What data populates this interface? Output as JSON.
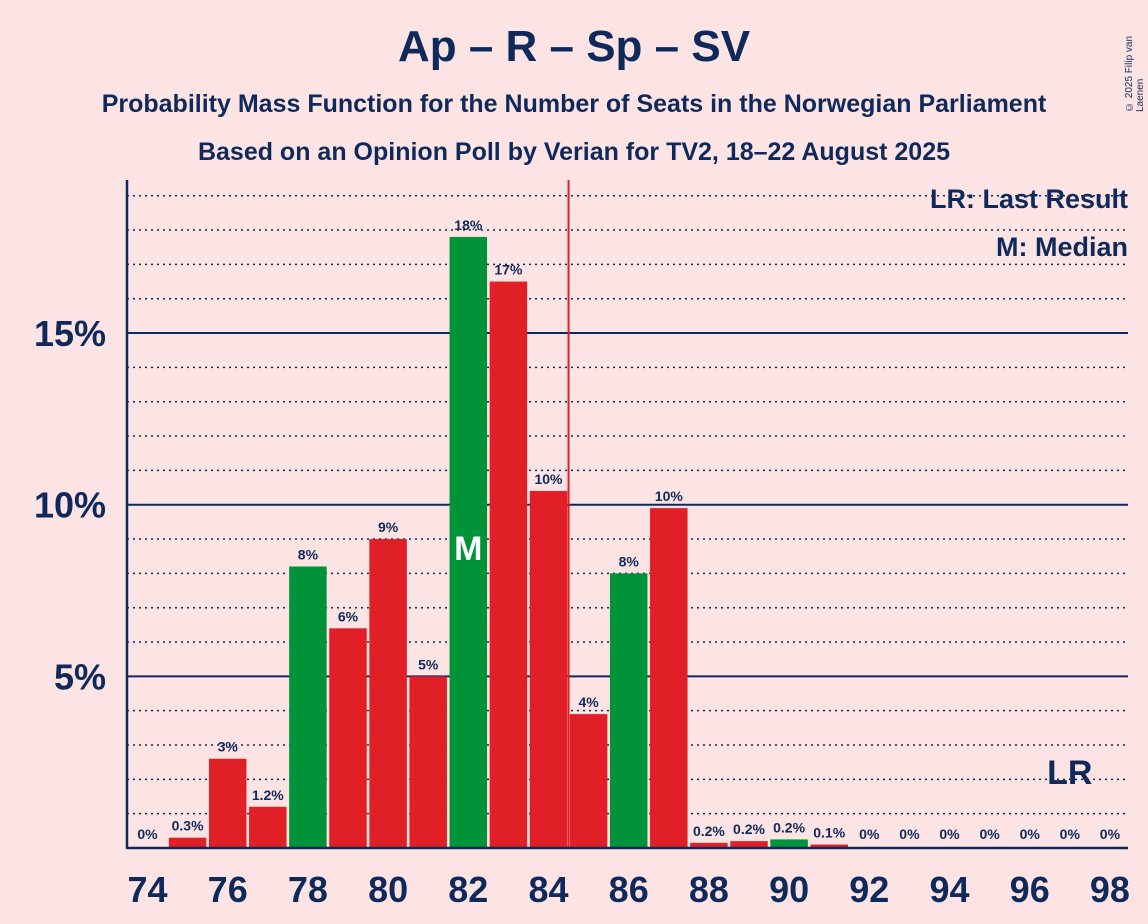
{
  "header": {
    "title": "Ap – R – Sp – SV",
    "subtitle": "Probability Mass Function for the Number of Seats in the Norwegian Parliament",
    "subtitle2": "Based on an Opinion Poll by Verian for TV2, 18–22 August 2025",
    "copyright": "© 2025 Filip van Laenen"
  },
  "legend": {
    "last_result": "LR: Last Result",
    "median": "M: Median"
  },
  "chart_data": {
    "type": "bar",
    "x": [
      74,
      75,
      76,
      77,
      78,
      79,
      80,
      81,
      82,
      83,
      84,
      85,
      86,
      87,
      88,
      89,
      90,
      91,
      92,
      93,
      94,
      95,
      96,
      97,
      98
    ],
    "values": [
      0,
      0.3,
      2.6,
      1.2,
      8.2,
      6.4,
      9.0,
      5.0,
      17.8,
      16.5,
      10.4,
      3.9,
      8.0,
      9.9,
      0.15,
      0.2,
      0.25,
      0.1,
      0,
      0,
      0,
      0,
      0,
      0,
      0
    ],
    "labels": [
      "0%",
      "0.3%",
      "3%",
      "1.2%",
      "8%",
      "6%",
      "9%",
      "5%",
      "18%",
      "17%",
      "10%",
      "4%",
      "8%",
      "10%",
      "0.2%",
      "0.2%",
      "0.2%",
      "0.1%",
      "0%",
      "0%",
      "0%",
      "0%",
      "0%",
      "0%",
      "0%"
    ],
    "bar_colors": [
      "#E01F26",
      "#E01F26",
      "#E01F26",
      "#E01F26",
      "#009339",
      "#E01F26",
      "#E01F26",
      "#E01F26",
      "#009339",
      "#E01F26",
      "#E01F26",
      "#E01F26",
      "#009339",
      "#E01F26",
      "#E01F26",
      "#E01F26",
      "#009339",
      "#E01F26",
      "#E01F26",
      "#E01F26",
      "#E01F26",
      "#E01F26",
      "#E01F26",
      "#E01F26",
      "#E01F26"
    ],
    "x_tick_labels": [
      "74",
      "76",
      "78",
      "80",
      "82",
      "84",
      "86",
      "88",
      "90",
      "92",
      "94",
      "96",
      "98"
    ],
    "y_ticks": [
      5,
      10,
      15
    ],
    "y_tick_labels": [
      "5%",
      "10%",
      "15%"
    ],
    "ylim": [
      0,
      19.5
    ],
    "median": 82,
    "median_label": "M",
    "majority_line": 84.5,
    "last_result": 97,
    "last_result_label": "LR",
    "grid": true,
    "colors": {
      "axis": "#0F2A5A",
      "majority_line": "#E01F26"
    }
  }
}
